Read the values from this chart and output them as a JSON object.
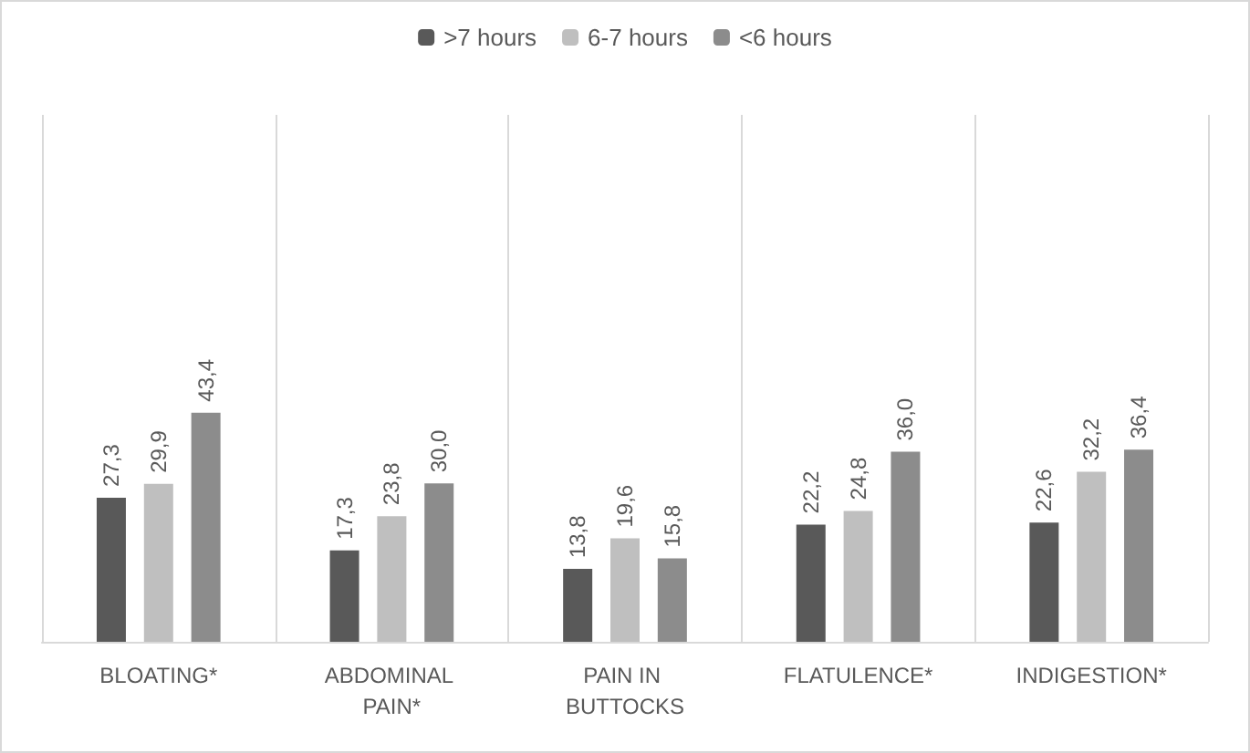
{
  "chart_data": {
    "type": "bar",
    "categories": [
      "BLOATING*",
      "ABDOMINAL PAIN*",
      "PAIN IN BUTTOCKS",
      "FLATULENCE*",
      "INDIGESTION*"
    ],
    "series": [
      {
        "name": ">7 hours",
        "color": "#595959",
        "values": [
          27.3,
          17.3,
          13.8,
          22.2,
          22.6
        ],
        "value_labels": [
          "27,3",
          "17,3",
          "13,8",
          "22,2",
          "22,6"
        ]
      },
      {
        "name": "6-7 hours",
        "color": "#bfbfbf",
        "values": [
          29.9,
          23.8,
          19.6,
          24.8,
          32.2
        ],
        "value_labels": [
          "29,9",
          "23,8",
          "19,6",
          "24,8",
          "32,2"
        ]
      },
      {
        "name": "<6 hours",
        "color": "#8c8c8c",
        "values": [
          43.4,
          30.0,
          15.8,
          36.0,
          36.4
        ],
        "value_labels": [
          "43,4",
          "30,0",
          "15,8",
          "36,0",
          "36,4"
        ]
      }
    ],
    "legend": "top",
    "grid": "x",
    "tick_labels": "x"
  }
}
